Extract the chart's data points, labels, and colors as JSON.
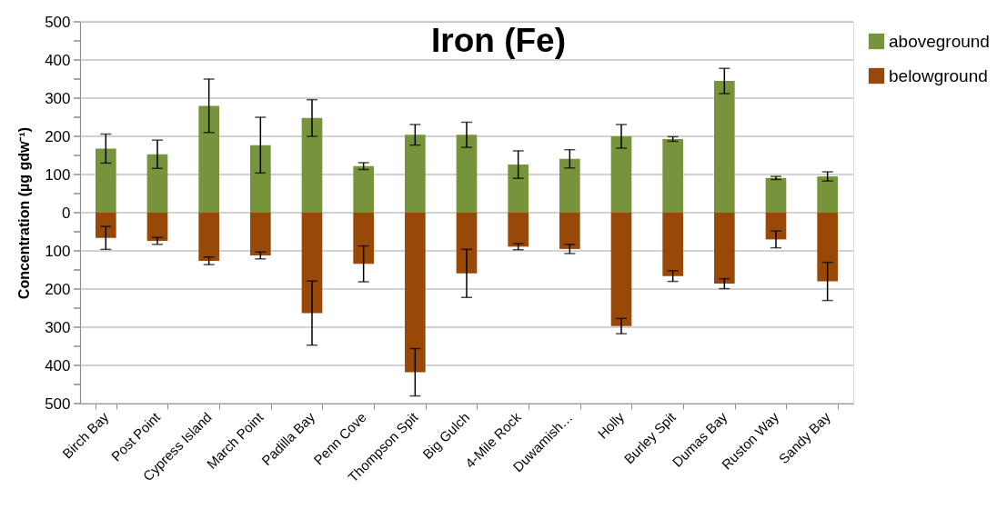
{
  "chart_data": {
    "type": "bar",
    "title": "Iron (Fe)",
    "ylabel": "Concentration   (µg gdw⁻¹)",
    "categories": [
      "Birch Bay",
      "Post Point",
      "Cypress Island",
      "March Point",
      "Padilla Bay",
      "Penn Cove",
      "Thompson Spit",
      "Big Gulch",
      "4-Mile Rock",
      "Duwamish…",
      "Holly",
      "Burley Spit",
      "Dumas Bay",
      "Ruston Way",
      "Sandy Bay"
    ],
    "series": [
      {
        "name": "aboveground",
        "color": "#77933c",
        "values": [
          168,
          153,
          280,
          177,
          248,
          122,
          204,
          204,
          126,
          141,
          200,
          193,
          345,
          91,
          95
        ],
        "errors": [
          38,
          37,
          70,
          73,
          48,
          9,
          27,
          33,
          36,
          24,
          31,
          6,
          33,
          4,
          12
        ]
      },
      {
        "name": "belowground",
        "color": "#984807",
        "values": [
          -66,
          -74,
          -126,
          -112,
          -263,
          -134,
          -418,
          -159,
          -89,
          -95,
          -297,
          -166,
          -186,
          -70,
          -180
        ],
        "errors": [
          30,
          9,
          10,
          9,
          84,
          47,
          62,
          63,
          8,
          12,
          20,
          14,
          13,
          22,
          50
        ]
      }
    ],
    "stacked": true,
    "ylim": [
      -500,
      500
    ],
    "yticks": [
      {
        "value": -500,
        "label": "500"
      },
      {
        "value": -450,
        "label": null
      },
      {
        "value": -400,
        "label": "400"
      },
      {
        "value": -350,
        "label": null
      },
      {
        "value": -300,
        "label": "300"
      },
      {
        "value": -250,
        "label": null
      },
      {
        "value": -200,
        "label": "200"
      },
      {
        "value": -150,
        "label": null
      },
      {
        "value": -100,
        "label": "100"
      },
      {
        "value": -50,
        "label": null
      },
      0,
      {
        "value": 50,
        "label": null
      },
      100,
      {
        "value": 150,
        "label": null
      },
      200,
      {
        "value": 250,
        "label": null
      },
      300,
      {
        "value": 350,
        "label": null
      },
      400,
      {
        "value": 450,
        "label": null
      },
      500
    ],
    "grid": "y",
    "legend": "top right"
  }
}
